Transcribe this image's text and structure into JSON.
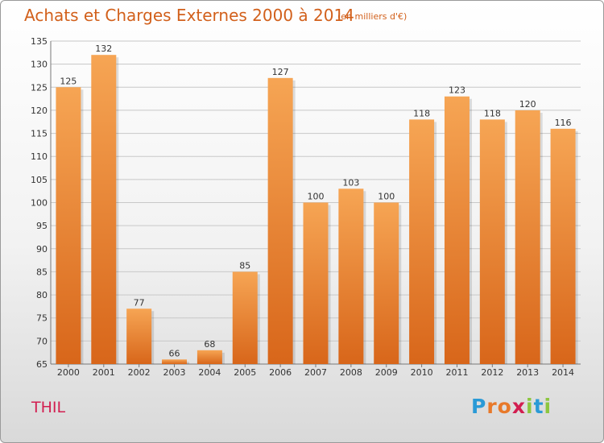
{
  "page": {
    "title": "Achats et Charges Externes 2000 à 2014",
    "subtitle": "(en milliers d'€)",
    "commune": "THIL",
    "logo": {
      "text": "Proxiti",
      "letters": [
        {
          "ch": "P",
          "color": "#2a9ad6"
        },
        {
          "ch": "r",
          "color": "#e8792a"
        },
        {
          "ch": "o",
          "color": "#e8792a"
        },
        {
          "ch": "x",
          "color": "#d21e50"
        },
        {
          "ch": "i",
          "color": "#8cc63f"
        },
        {
          "ch": "t",
          "color": "#2a9ad6"
        },
        {
          "ch": "i",
          "color": "#8cc63f"
        }
      ]
    }
  },
  "chart_data": {
    "type": "bar",
    "title": "Achats et Charges Externes 2000 à 2014",
    "subtitle": "(en milliers d'€)",
    "categories": [
      "2000",
      "2001",
      "2002",
      "2003",
      "2004",
      "2005",
      "2006",
      "2007",
      "2008",
      "2009",
      "2010",
      "2011",
      "2012",
      "2013",
      "2014"
    ],
    "values": [
      125,
      132,
      77,
      66,
      68,
      85,
      127,
      100,
      103,
      100,
      118,
      123,
      118,
      120,
      116
    ],
    "ylim": [
      65,
      135
    ],
    "yticks": [
      65,
      70,
      75,
      80,
      85,
      90,
      95,
      100,
      105,
      110,
      115,
      120,
      125,
      130,
      135
    ],
    "grid": true,
    "bar_color": "#f0913a",
    "grid_color": "#c8c8c8"
  }
}
